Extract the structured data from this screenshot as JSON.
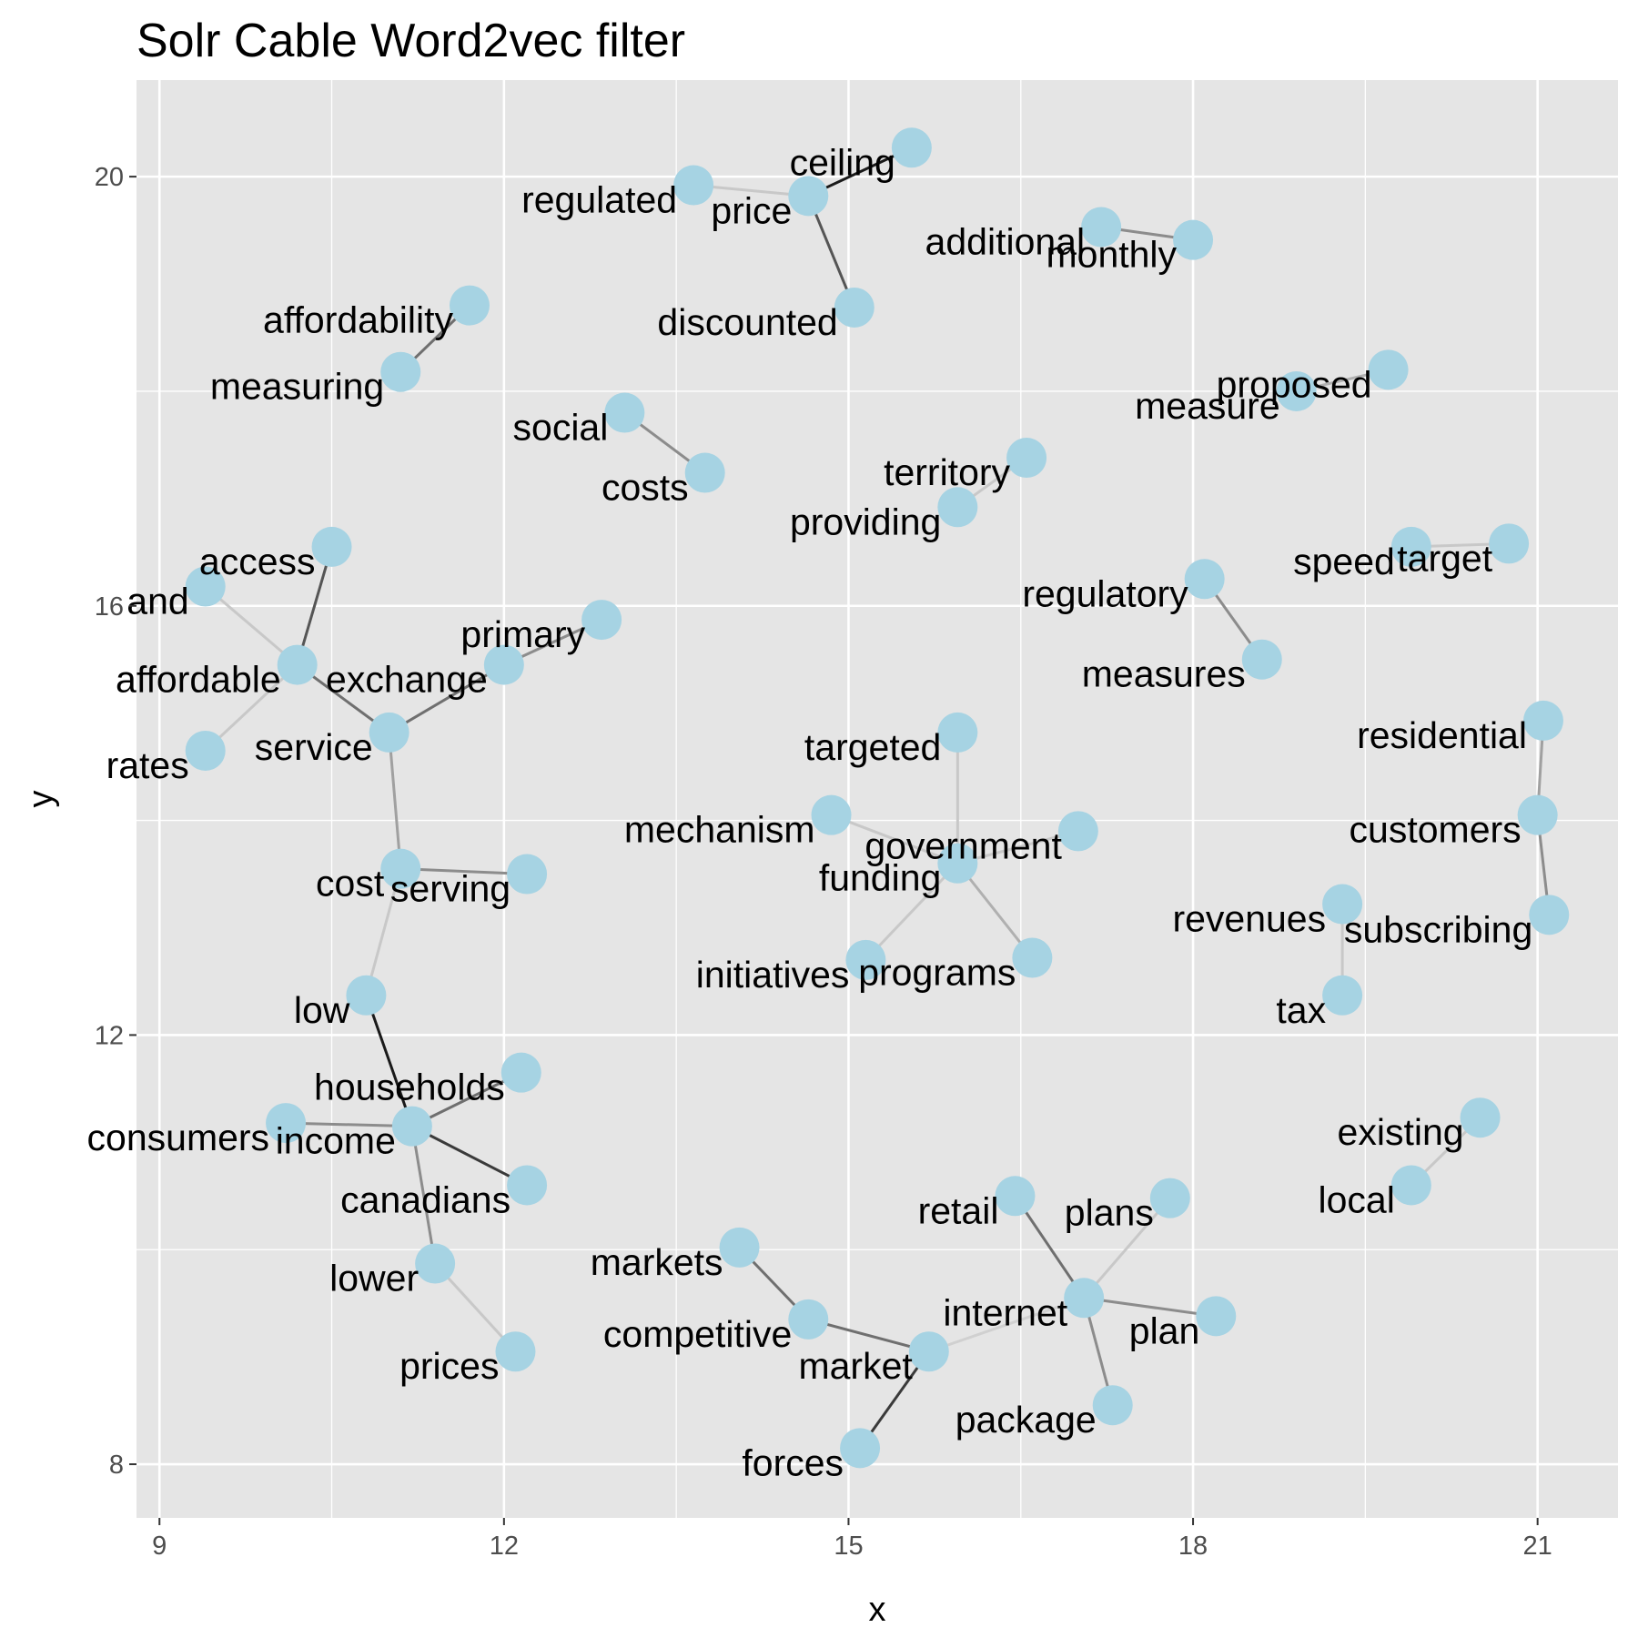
{
  "chart_data": {
    "type": "scatter",
    "title": "Solr Cable Word2vec filter",
    "xlabel": "x",
    "ylabel": "y",
    "xlim": [
      8.8,
      21.7
    ],
    "ylim": [
      7.5,
      20.9
    ],
    "x_ticks": [
      9,
      12,
      15,
      18,
      21
    ],
    "y_ticks": [
      8,
      12,
      16,
      20
    ],
    "grid": true,
    "background": "#e5e5e5",
    "grid_color": "#ffffff",
    "point_color": "#a6d3e3",
    "text_color": "#000000",
    "points": [
      {
        "label": "ceiling",
        "x": 15.55,
        "y": 20.27
      },
      {
        "label": "regulated",
        "x": 13.65,
        "y": 19.92
      },
      {
        "label": "price",
        "x": 14.65,
        "y": 19.82
      },
      {
        "label": "discounted",
        "x": 15.05,
        "y": 18.78
      },
      {
        "label": "additional",
        "x": 17.2,
        "y": 19.53
      },
      {
        "label": "monthly",
        "x": 18.0,
        "y": 19.41
      },
      {
        "label": "affordability",
        "x": 11.7,
        "y": 18.8
      },
      {
        "label": "measuring",
        "x": 11.1,
        "y": 18.18
      },
      {
        "label": "social",
        "x": 13.05,
        "y": 17.8
      },
      {
        "label": "costs",
        "x": 13.75,
        "y": 17.24
      },
      {
        "label": "proposed",
        "x": 19.7,
        "y": 18.2
      },
      {
        "label": "measure",
        "x": 18.9,
        "y": 18.0
      },
      {
        "label": "territory",
        "x": 16.55,
        "y": 17.38
      },
      {
        "label": "providing",
        "x": 15.95,
        "y": 16.92
      },
      {
        "label": "access",
        "x": 10.5,
        "y": 16.55
      },
      {
        "label": "and",
        "x": 9.4,
        "y": 16.18
      },
      {
        "label": "affordable",
        "x": 10.2,
        "y": 15.45
      },
      {
        "label": "primary",
        "x": 12.85,
        "y": 15.87
      },
      {
        "label": "exchange",
        "x": 12.0,
        "y": 15.45
      },
      {
        "label": "service",
        "x": 11.0,
        "y": 14.82
      },
      {
        "label": "rates",
        "x": 9.4,
        "y": 14.65
      },
      {
        "label": "speed",
        "x": 19.9,
        "y": 16.55
      },
      {
        "label": "target",
        "x": 20.75,
        "y": 16.58
      },
      {
        "label": "regulatory",
        "x": 18.1,
        "y": 16.25
      },
      {
        "label": "measures",
        "x": 18.6,
        "y": 15.5
      },
      {
        "label": "residential",
        "x": 21.05,
        "y": 14.93
      },
      {
        "label": "customers",
        "x": 21.0,
        "y": 14.05
      },
      {
        "label": "subscribing",
        "x": 21.1,
        "y": 13.12
      },
      {
        "label": "targeted",
        "x": 15.95,
        "y": 14.82
      },
      {
        "label": "mechanism",
        "x": 14.85,
        "y": 14.05
      },
      {
        "label": "government",
        "x": 17.0,
        "y": 13.9
      },
      {
        "label": "funding",
        "x": 15.95,
        "y": 13.6
      },
      {
        "label": "initiatives",
        "x": 15.15,
        "y": 12.7
      },
      {
        "label": "programs",
        "x": 16.6,
        "y": 12.72
      },
      {
        "label": "revenues",
        "x": 19.3,
        "y": 13.22
      },
      {
        "label": "tax",
        "x": 19.3,
        "y": 12.37
      },
      {
        "label": "cost",
        "x": 11.1,
        "y": 13.55
      },
      {
        "label": "serving",
        "x": 12.2,
        "y": 13.5
      },
      {
        "label": "low",
        "x": 10.8,
        "y": 12.37
      },
      {
        "label": "households",
        "x": 12.15,
        "y": 11.65
      },
      {
        "label": "consumers",
        "x": 10.1,
        "y": 11.18
      },
      {
        "label": "income",
        "x": 11.2,
        "y": 11.15
      },
      {
        "label": "canadians",
        "x": 12.2,
        "y": 10.6
      },
      {
        "label": "existing",
        "x": 20.5,
        "y": 11.23
      },
      {
        "label": "local",
        "x": 19.9,
        "y": 10.6
      },
      {
        "label": "retail",
        "x": 16.45,
        "y": 10.5
      },
      {
        "label": "plans",
        "x": 17.8,
        "y": 10.48
      },
      {
        "label": "markets",
        "x": 14.05,
        "y": 10.02
      },
      {
        "label": "lower",
        "x": 11.4,
        "y": 9.87
      },
      {
        "label": "internet",
        "x": 17.05,
        "y": 9.55
      },
      {
        "label": "plan",
        "x": 18.2,
        "y": 9.38
      },
      {
        "label": "competitive",
        "x": 14.65,
        "y": 9.35
      },
      {
        "label": "market",
        "x": 15.7,
        "y": 9.05
      },
      {
        "label": "prices",
        "x": 12.1,
        "y": 9.05
      },
      {
        "label": "package",
        "x": 17.3,
        "y": 8.55
      },
      {
        "label": "forces",
        "x": 15.1,
        "y": 8.15
      }
    ],
    "edges": [
      {
        "from": "price",
        "to": "ceiling",
        "color": "#1a1a1a"
      },
      {
        "from": "regulated",
        "to": "price",
        "color": "#c8c8c8"
      },
      {
        "from": "price",
        "to": "discounted",
        "color": "#555555"
      },
      {
        "from": "additional",
        "to": "monthly",
        "color": "#8c8c8c"
      },
      {
        "from": "affordability",
        "to": "measuring",
        "color": "#6f6f6f"
      },
      {
        "from": "social",
        "to": "costs",
        "color": "#8c8c8c"
      },
      {
        "from": "measure",
        "to": "proposed",
        "color": "#b0b0b0"
      },
      {
        "from": "territory",
        "to": "providing",
        "color": "#c8c8c8"
      },
      {
        "from": "access",
        "to": "affordable",
        "color": "#555555"
      },
      {
        "from": "and",
        "to": "affordable",
        "color": "#c8c8c8"
      },
      {
        "from": "affordable",
        "to": "rates",
        "color": "#c8c8c8"
      },
      {
        "from": "affordable",
        "to": "service",
        "color": "#6f6f6f"
      },
      {
        "from": "service",
        "to": "exchange",
        "color": "#6f6f6f"
      },
      {
        "from": "exchange",
        "to": "primary",
        "color": "#8c8c8c"
      },
      {
        "from": "service",
        "to": "cost",
        "color": "#a0a0a0"
      },
      {
        "from": "cost",
        "to": "serving",
        "color": "#8c8c8c"
      },
      {
        "from": "cost",
        "to": "low",
        "color": "#c8c8c8"
      },
      {
        "from": "low",
        "to": "income",
        "color": "#1a1a1a"
      },
      {
        "from": "income",
        "to": "households",
        "color": "#6f6f6f"
      },
      {
        "from": "consumers",
        "to": "income",
        "color": "#8c8c8c"
      },
      {
        "from": "income",
        "to": "canadians",
        "color": "#3a3a3a"
      },
      {
        "from": "income",
        "to": "lower",
        "color": "#8c8c8c"
      },
      {
        "from": "lower",
        "to": "prices",
        "color": "#c8c8c8"
      },
      {
        "from": "speed",
        "to": "target",
        "color": "#c8c8c8"
      },
      {
        "from": "regulatory",
        "to": "measures",
        "color": "#8c8c8c"
      },
      {
        "from": "residential",
        "to": "customers",
        "color": "#a0a0a0"
      },
      {
        "from": "customers",
        "to": "subscribing",
        "color": "#8c8c8c"
      },
      {
        "from": "targeted",
        "to": "funding",
        "color": "#c8c8c8"
      },
      {
        "from": "mechanism",
        "to": "funding",
        "color": "#c8c8c8"
      },
      {
        "from": "government",
        "to": "funding",
        "color": "#c8c8c8"
      },
      {
        "from": "funding",
        "to": "initiatives",
        "color": "#c8c8c8"
      },
      {
        "from": "funding",
        "to": "programs",
        "color": "#b0b0b0"
      },
      {
        "from": "revenues",
        "to": "tax",
        "color": "#c8c8c8"
      },
      {
        "from": "existing",
        "to": "local",
        "color": "#c8c8c8"
      },
      {
        "from": "retail",
        "to": "internet",
        "color": "#6f6f6f"
      },
      {
        "from": "plans",
        "to": "internet",
        "color": "#c8c8c8"
      },
      {
        "from": "internet",
        "to": "plan",
        "color": "#8c8c8c"
      },
      {
        "from": "internet",
        "to": "package",
        "color": "#8c8c8c"
      },
      {
        "from": "internet",
        "to": "market",
        "color": "#d0d0d0"
      },
      {
        "from": "markets",
        "to": "competitive",
        "color": "#6f6f6f"
      },
      {
        "from": "competitive",
        "to": "market",
        "color": "#6f6f6f"
      },
      {
        "from": "market",
        "to": "forces",
        "color": "#3a3a3a"
      }
    ]
  }
}
